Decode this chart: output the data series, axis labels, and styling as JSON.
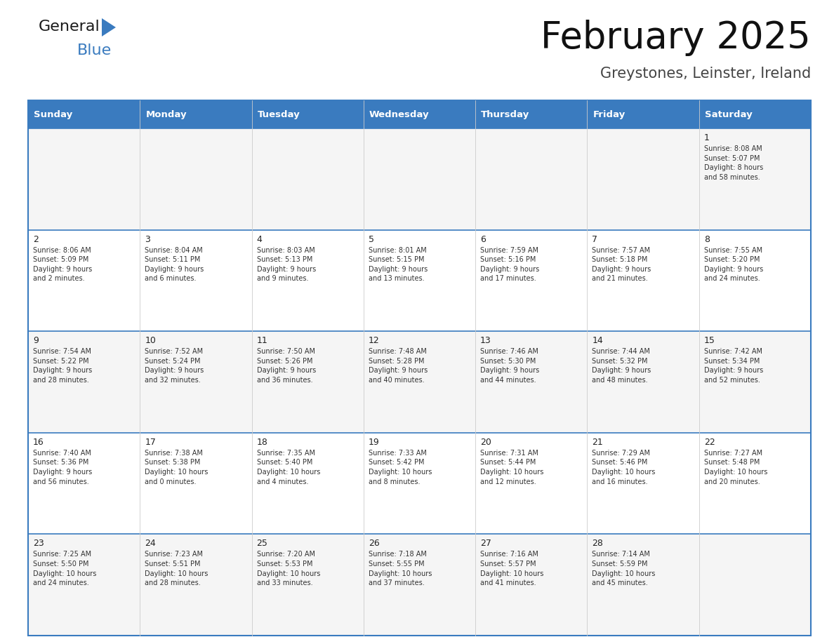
{
  "title": "February 2025",
  "subtitle": "Greystones, Leinster, Ireland",
  "header_color": "#3a7bbf",
  "header_text_color": "#ffffff",
  "border_color": "#3a7bbf",
  "day_names": [
    "Sunday",
    "Monday",
    "Tuesday",
    "Wednesday",
    "Thursday",
    "Friday",
    "Saturday"
  ],
  "weeks": [
    [
      {
        "day": null,
        "info": null
      },
      {
        "day": null,
        "info": null
      },
      {
        "day": null,
        "info": null
      },
      {
        "day": null,
        "info": null
      },
      {
        "day": null,
        "info": null
      },
      {
        "day": null,
        "info": null
      },
      {
        "day": 1,
        "info": "Sunrise: 8:08 AM\nSunset: 5:07 PM\nDaylight: 8 hours\nand 58 minutes."
      }
    ],
    [
      {
        "day": 2,
        "info": "Sunrise: 8:06 AM\nSunset: 5:09 PM\nDaylight: 9 hours\nand 2 minutes."
      },
      {
        "day": 3,
        "info": "Sunrise: 8:04 AM\nSunset: 5:11 PM\nDaylight: 9 hours\nand 6 minutes."
      },
      {
        "day": 4,
        "info": "Sunrise: 8:03 AM\nSunset: 5:13 PM\nDaylight: 9 hours\nand 9 minutes."
      },
      {
        "day": 5,
        "info": "Sunrise: 8:01 AM\nSunset: 5:15 PM\nDaylight: 9 hours\nand 13 minutes."
      },
      {
        "day": 6,
        "info": "Sunrise: 7:59 AM\nSunset: 5:16 PM\nDaylight: 9 hours\nand 17 minutes."
      },
      {
        "day": 7,
        "info": "Sunrise: 7:57 AM\nSunset: 5:18 PM\nDaylight: 9 hours\nand 21 minutes."
      },
      {
        "day": 8,
        "info": "Sunrise: 7:55 AM\nSunset: 5:20 PM\nDaylight: 9 hours\nand 24 minutes."
      }
    ],
    [
      {
        "day": 9,
        "info": "Sunrise: 7:54 AM\nSunset: 5:22 PM\nDaylight: 9 hours\nand 28 minutes."
      },
      {
        "day": 10,
        "info": "Sunrise: 7:52 AM\nSunset: 5:24 PM\nDaylight: 9 hours\nand 32 minutes."
      },
      {
        "day": 11,
        "info": "Sunrise: 7:50 AM\nSunset: 5:26 PM\nDaylight: 9 hours\nand 36 minutes."
      },
      {
        "day": 12,
        "info": "Sunrise: 7:48 AM\nSunset: 5:28 PM\nDaylight: 9 hours\nand 40 minutes."
      },
      {
        "day": 13,
        "info": "Sunrise: 7:46 AM\nSunset: 5:30 PM\nDaylight: 9 hours\nand 44 minutes."
      },
      {
        "day": 14,
        "info": "Sunrise: 7:44 AM\nSunset: 5:32 PM\nDaylight: 9 hours\nand 48 minutes."
      },
      {
        "day": 15,
        "info": "Sunrise: 7:42 AM\nSunset: 5:34 PM\nDaylight: 9 hours\nand 52 minutes."
      }
    ],
    [
      {
        "day": 16,
        "info": "Sunrise: 7:40 AM\nSunset: 5:36 PM\nDaylight: 9 hours\nand 56 minutes."
      },
      {
        "day": 17,
        "info": "Sunrise: 7:38 AM\nSunset: 5:38 PM\nDaylight: 10 hours\nand 0 minutes."
      },
      {
        "day": 18,
        "info": "Sunrise: 7:35 AM\nSunset: 5:40 PM\nDaylight: 10 hours\nand 4 minutes."
      },
      {
        "day": 19,
        "info": "Sunrise: 7:33 AM\nSunset: 5:42 PM\nDaylight: 10 hours\nand 8 minutes."
      },
      {
        "day": 20,
        "info": "Sunrise: 7:31 AM\nSunset: 5:44 PM\nDaylight: 10 hours\nand 12 minutes."
      },
      {
        "day": 21,
        "info": "Sunrise: 7:29 AM\nSunset: 5:46 PM\nDaylight: 10 hours\nand 16 minutes."
      },
      {
        "day": 22,
        "info": "Sunrise: 7:27 AM\nSunset: 5:48 PM\nDaylight: 10 hours\nand 20 minutes."
      }
    ],
    [
      {
        "day": 23,
        "info": "Sunrise: 7:25 AM\nSunset: 5:50 PM\nDaylight: 10 hours\nand 24 minutes."
      },
      {
        "day": 24,
        "info": "Sunrise: 7:23 AM\nSunset: 5:51 PM\nDaylight: 10 hours\nand 28 minutes."
      },
      {
        "day": 25,
        "info": "Sunrise: 7:20 AM\nSunset: 5:53 PM\nDaylight: 10 hours\nand 33 minutes."
      },
      {
        "day": 26,
        "info": "Sunrise: 7:18 AM\nSunset: 5:55 PM\nDaylight: 10 hours\nand 37 minutes."
      },
      {
        "day": 27,
        "info": "Sunrise: 7:16 AM\nSunset: 5:57 PM\nDaylight: 10 hours\nand 41 minutes."
      },
      {
        "day": 28,
        "info": "Sunrise: 7:14 AM\nSunset: 5:59 PM\nDaylight: 10 hours\nand 45 minutes."
      },
      {
        "day": null,
        "info": null
      }
    ]
  ],
  "logo_text_general": "General",
  "logo_text_blue": "Blue",
  "logo_color_general": "#1a1a1a",
  "logo_color_blue": "#3a7bbf",
  "logo_triangle_color": "#3a7bbf"
}
